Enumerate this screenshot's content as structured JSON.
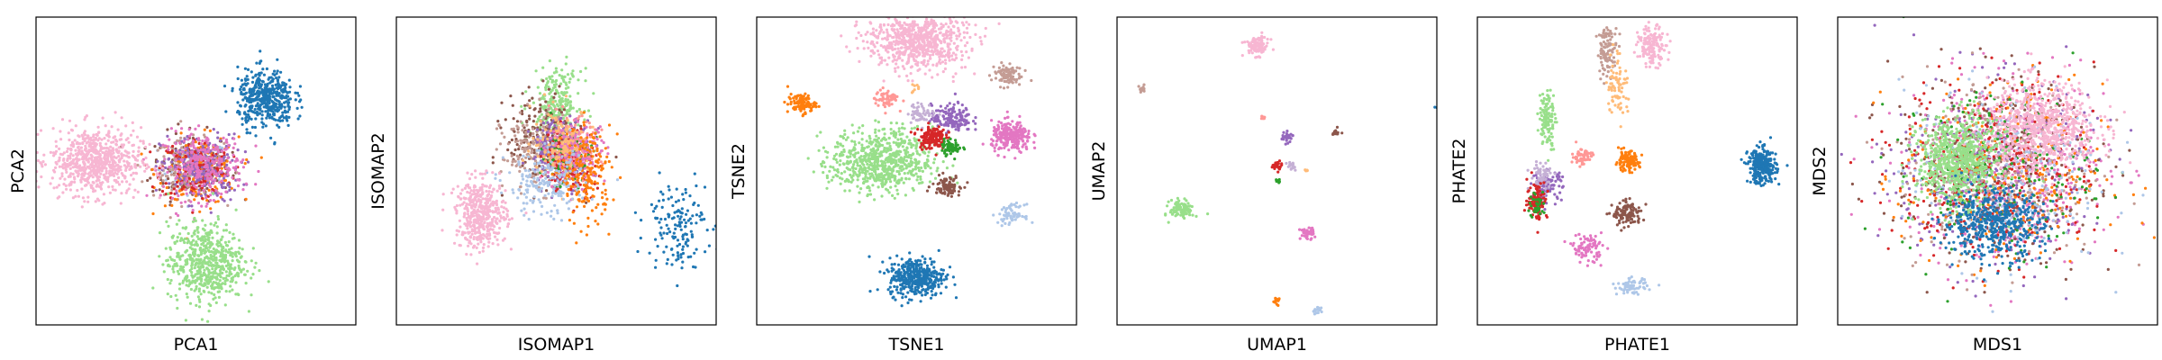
{
  "chart_data": [
    {
      "type": "scatter",
      "xlabel": "PCA1",
      "ylabel": "PCA2",
      "grid": false,
      "ticks": false,
      "clusters": [
        {
          "color": "#aec7e8",
          "cx": -0.05,
          "cy": 0.05,
          "sx": 0.35,
          "sy": 0.3,
          "n": 60
        },
        {
          "color": "#8c564b",
          "cx": -0.1,
          "cy": 0.1,
          "sx": 0.4,
          "sy": 0.35,
          "n": 160
        },
        {
          "color": "#c49c94",
          "cx": -0.15,
          "cy": 0.05,
          "sx": 0.35,
          "sy": 0.3,
          "n": 200
        },
        {
          "color": "#ff7f0e",
          "cx": 0.05,
          "cy": 0.0,
          "sx": 0.4,
          "sy": 0.35,
          "n": 160
        },
        {
          "color": "#d62728",
          "cx": 0.0,
          "cy": 0.05,
          "sx": 0.35,
          "sy": 0.32,
          "n": 160
        },
        {
          "color": "#9467bd",
          "cx": 0.1,
          "cy": 0.05,
          "sx": 0.4,
          "sy": 0.35,
          "n": 200
        },
        {
          "color": "#e377c2",
          "cx": 0.15,
          "cy": 0.1,
          "sx": 0.4,
          "sy": 0.35,
          "n": 260
        },
        {
          "color": "#f7b6d2",
          "cx": -2.0,
          "cy": 0.2,
          "sx": 0.45,
          "sy": 0.35,
          "n": 700
        },
        {
          "color": "#98df8a",
          "cx": 0.2,
          "cy": -1.9,
          "sx": 0.38,
          "sy": 0.4,
          "n": 600
        },
        {
          "color": "#1f77b4",
          "cx": 1.4,
          "cy": 1.5,
          "sx": 0.28,
          "sy": 0.3,
          "n": 450
        }
      ]
    },
    {
      "type": "scatter",
      "xlabel": "ISOMAP1",
      "ylabel": "ISOMAP2",
      "grid": false,
      "ticks": false,
      "clusters": [
        {
          "color": "#98df8a",
          "cx": 0.0,
          "cy": 1.4,
          "sx": 0.25,
          "sy": 0.35,
          "n": 250
        },
        {
          "color": "#8c564b",
          "cx": -0.3,
          "cy": 0.7,
          "sx": 0.35,
          "sy": 0.45,
          "n": 200
        },
        {
          "color": "#c49c94",
          "cx": -0.4,
          "cy": 0.4,
          "sx": 0.35,
          "sy": 0.4,
          "n": 200
        },
        {
          "color": "#9467bd",
          "cx": 0.1,
          "cy": 0.4,
          "sx": 0.3,
          "sy": 0.35,
          "n": 200
        },
        {
          "color": "#d62728",
          "cx": 0.3,
          "cy": 0.2,
          "sx": 0.25,
          "sy": 0.35,
          "n": 180
        },
        {
          "color": "#2ca02c",
          "cx": 0.2,
          "cy": 0.3,
          "sx": 0.25,
          "sy": 0.3,
          "n": 100
        },
        {
          "color": "#ff9896",
          "cx": 0.3,
          "cy": 0.5,
          "sx": 0.3,
          "sy": 0.3,
          "n": 120
        },
        {
          "color": "#e377c2",
          "cx": 0.4,
          "cy": 0.4,
          "sx": 0.3,
          "sy": 0.3,
          "n": 160
        },
        {
          "color": "#ffbb78",
          "cx": 0.1,
          "cy": 0.6,
          "sx": 0.3,
          "sy": 0.35,
          "n": 120
        },
        {
          "color": "#ff7f0e",
          "cx": 0.6,
          "cy": -0.1,
          "sx": 0.25,
          "sy": 0.5,
          "n": 200
        },
        {
          "color": "#aec7e8",
          "cx": -0.2,
          "cy": -0.3,
          "sx": 0.4,
          "sy": 0.35,
          "n": 180
        },
        {
          "color": "#f7b6d2",
          "cx": -1.5,
          "cy": -0.9,
          "sx": 0.25,
          "sy": 0.35,
          "n": 450
        },
        {
          "color": "#1f77b4",
          "cx": 2.4,
          "cy": -1.1,
          "sx": 0.3,
          "sy": 0.45,
          "n": 150
        }
      ]
    },
    {
      "type": "scatter",
      "xlabel": "TSNE1",
      "ylabel": "TSNE2",
      "grid": false,
      "ticks": false,
      "clusters": [
        {
          "color": "#f7b6d2",
          "cx": 0.0,
          "cy": 2.7,
          "sx": 0.5,
          "sy": 0.3,
          "n": 700
        },
        {
          "color": "#98df8a",
          "cx": -0.7,
          "cy": 0.2,
          "sx": 0.5,
          "sy": 0.33,
          "n": 700
        },
        {
          "color": "#1f77b4",
          "cx": 0.0,
          "cy": -2.2,
          "sx": 0.28,
          "sy": 0.2,
          "n": 400
        },
        {
          "color": "#ff7f0e",
          "cx": -2.3,
          "cy": 1.4,
          "sx": 0.14,
          "sy": 0.1,
          "n": 100
        },
        {
          "color": "#ff9896",
          "cx": -0.6,
          "cy": 1.5,
          "sx": 0.12,
          "sy": 0.1,
          "n": 60
        },
        {
          "color": "#c49c94",
          "cx": 1.8,
          "cy": 2.0,
          "sx": 0.15,
          "sy": 0.12,
          "n": 90
        },
        {
          "color": "#9467bd",
          "cx": 0.7,
          "cy": 1.1,
          "sx": 0.2,
          "sy": 0.14,
          "n": 150
        },
        {
          "color": "#c5b0d5",
          "cx": 0.1,
          "cy": 1.2,
          "sx": 0.14,
          "sy": 0.1,
          "n": 60
        },
        {
          "color": "#d62728",
          "cx": 0.3,
          "cy": 0.7,
          "sx": 0.14,
          "sy": 0.12,
          "n": 150
        },
        {
          "color": "#2ca02c",
          "cx": 0.7,
          "cy": 0.5,
          "sx": 0.1,
          "sy": 0.08,
          "n": 60
        },
        {
          "color": "#e377c2",
          "cx": 1.9,
          "cy": 0.7,
          "sx": 0.2,
          "sy": 0.16,
          "n": 250
        },
        {
          "color": "#8c564b",
          "cx": 0.6,
          "cy": -0.3,
          "sx": 0.14,
          "sy": 0.1,
          "n": 90
        },
        {
          "color": "#aec7e8",
          "cx": 1.9,
          "cy": -0.9,
          "sx": 0.13,
          "sy": 0.1,
          "n": 70
        },
        {
          "color": "#ffbb78",
          "cx": 0.0,
          "cy": 1.7,
          "sx": 0.05,
          "sy": 0.05,
          "n": 8
        }
      ]
    },
    {
      "type": "scatter",
      "xlabel": "UMAP1",
      "ylabel": "UMAP2",
      "grid": false,
      "ticks": false,
      "clusters": [
        {
          "color": "#f7b6d2",
          "cx": -0.4,
          "cy": 2.6,
          "sx": 0.12,
          "sy": 0.1,
          "n": 100
        },
        {
          "color": "#1f77b4",
          "cx": 3.3,
          "cy": 1.3,
          "sx": 0.06,
          "sy": 0.06,
          "n": 40
        },
        {
          "color": "#c49c94",
          "cx": -2.7,
          "cy": 1.7,
          "sx": 0.04,
          "sy": 0.04,
          "n": 12
        },
        {
          "color": "#98df8a",
          "cx": -1.9,
          "cy": -0.8,
          "sx": 0.12,
          "sy": 0.1,
          "n": 100
        },
        {
          "color": "#ff9896",
          "cx": -0.3,
          "cy": 1.1,
          "sx": 0.04,
          "sy": 0.03,
          "n": 8
        },
        {
          "color": "#9467bd",
          "cx": 0.2,
          "cy": 0.7,
          "sx": 0.06,
          "sy": 0.05,
          "n": 30
        },
        {
          "color": "#8c564b",
          "cx": 1.2,
          "cy": 0.8,
          "sx": 0.04,
          "sy": 0.04,
          "n": 12
        },
        {
          "color": "#d62728",
          "cx": 0.0,
          "cy": 0.1,
          "sx": 0.05,
          "sy": 0.05,
          "n": 25
        },
        {
          "color": "#c5b0d5",
          "cx": 0.3,
          "cy": 0.1,
          "sx": 0.05,
          "sy": 0.05,
          "n": 15
        },
        {
          "color": "#ffbb78",
          "cx": 0.6,
          "cy": 0.0,
          "sx": 0.03,
          "sy": 0.03,
          "n": 6
        },
        {
          "color": "#2ca02c",
          "cx": 0.0,
          "cy": -0.2,
          "sx": 0.03,
          "sy": 0.04,
          "n": 8
        },
        {
          "color": "#e377c2",
          "cx": 0.6,
          "cy": -1.3,
          "sx": 0.07,
          "sy": 0.06,
          "n": 40
        },
        {
          "color": "#ff7f0e",
          "cx": 0.0,
          "cy": -2.7,
          "sx": 0.04,
          "sy": 0.04,
          "n": 15
        },
        {
          "color": "#aec7e8",
          "cx": 0.8,
          "cy": -2.9,
          "sx": 0.05,
          "sy": 0.04,
          "n": 15
        }
      ]
    },
    {
      "type": "scatter",
      "xlabel": "PHATE1",
      "ylabel": "PHATE2",
      "grid": false,
      "ticks": false,
      "clusters": [
        {
          "color": "#f7b6d2",
          "cx": 0.3,
          "cy": 2.6,
          "sx": 0.14,
          "sy": 0.2,
          "n": 150
        },
        {
          "color": "#c49c94",
          "cx": -0.6,
          "cy": 2.5,
          "sx": 0.1,
          "sy": 0.25,
          "n": 100
        },
        {
          "color": "#ffbb78",
          "cx": -0.4,
          "cy": 1.8,
          "sx": 0.1,
          "sy": 0.35,
          "n": 80
        },
        {
          "color": "#98df8a",
          "cx": -1.8,
          "cy": 1.1,
          "sx": 0.08,
          "sy": 0.3,
          "n": 120
        },
        {
          "color": "#ff9896",
          "cx": -1.1,
          "cy": 0.3,
          "sx": 0.1,
          "sy": 0.1,
          "n": 60
        },
        {
          "color": "#ff7f0e",
          "cx": -0.2,
          "cy": 0.2,
          "sx": 0.12,
          "sy": 0.1,
          "n": 120
        },
        {
          "color": "#9467bd",
          "cx": -1.8,
          "cy": -0.3,
          "sx": 0.15,
          "sy": 0.15,
          "n": 100
        },
        {
          "color": "#c5b0d5",
          "cx": -1.9,
          "cy": -0.1,
          "sx": 0.12,
          "sy": 0.15,
          "n": 60
        },
        {
          "color": "#d62728",
          "cx": -2.0,
          "cy": -0.6,
          "sx": 0.1,
          "sy": 0.2,
          "n": 100
        },
        {
          "color": "#2ca02c",
          "cx": -2.0,
          "cy": -0.7,
          "sx": 0.08,
          "sy": 0.15,
          "n": 40
        },
        {
          "color": "#8c564b",
          "cx": -0.2,
          "cy": -0.9,
          "sx": 0.15,
          "sy": 0.12,
          "n": 120
        },
        {
          "color": "#e377c2",
          "cx": -1.0,
          "cy": -1.6,
          "sx": 0.15,
          "sy": 0.15,
          "n": 90
        },
        {
          "color": "#aec7e8",
          "cx": -0.1,
          "cy": -2.4,
          "sx": 0.15,
          "sy": 0.08,
          "n": 70
        },
        {
          "color": "#1f77b4",
          "cx": 2.5,
          "cy": 0.1,
          "sx": 0.14,
          "sy": 0.18,
          "n": 300
        }
      ]
    },
    {
      "type": "scatter",
      "xlabel": "MDS1",
      "ylabel": "MDS2",
      "grid": false,
      "ticks": false,
      "clusters": [
        {
          "color": "#e377c2",
          "cx": 0.2,
          "cy": 0.0,
          "sx": 1.0,
          "sy": 0.95,
          "n": 500
        },
        {
          "color": "#9467bd",
          "cx": -0.1,
          "cy": 0.0,
          "sx": 1.0,
          "sy": 0.95,
          "n": 350
        },
        {
          "color": "#8c564b",
          "cx": -0.1,
          "cy": 0.1,
          "sx": 1.0,
          "sy": 0.95,
          "n": 350
        },
        {
          "color": "#d62728",
          "cx": 0.0,
          "cy": 0.0,
          "sx": 1.0,
          "sy": 0.95,
          "n": 350
        },
        {
          "color": "#ff7f0e",
          "cx": 0.1,
          "cy": -0.1,
          "sx": 1.0,
          "sy": 0.95,
          "n": 300
        },
        {
          "color": "#c49c94",
          "cx": 0.0,
          "cy": 0.1,
          "sx": 1.0,
          "sy": 0.95,
          "n": 250
        },
        {
          "color": "#2ca02c",
          "cx": 0.0,
          "cy": 0.0,
          "sx": 0.95,
          "sy": 0.9,
          "n": 200
        },
        {
          "color": "#aec7e8",
          "cx": 0.1,
          "cy": -0.1,
          "sx": 1.0,
          "sy": 0.95,
          "n": 250
        },
        {
          "color": "#f7b6d2",
          "cx": 0.9,
          "cy": 0.95,
          "sx": 0.55,
          "sy": 0.45,
          "n": 700
        },
        {
          "color": "#98df8a",
          "cx": -0.8,
          "cy": 0.2,
          "sx": 0.4,
          "sy": 0.45,
          "n": 700
        },
        {
          "color": "#1f77b4",
          "cx": -0.1,
          "cy": -1.1,
          "sx": 0.5,
          "sy": 0.35,
          "n": 500
        }
      ]
    }
  ]
}
